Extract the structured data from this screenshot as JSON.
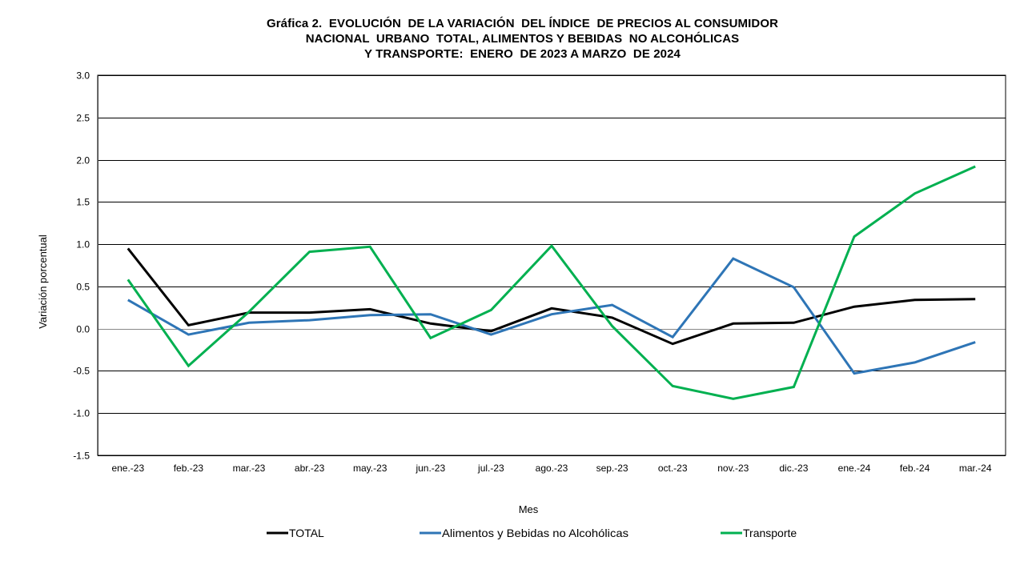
{
  "chart_data": {
    "type": "line",
    "title_lines": [
      "Gráfica 2.  EVOLUCIÓN  DE LA VARIACIÓN  DEL ÍNDICE  DE PRECIOS AL CONSUMIDOR",
      "NACIONAL  URBANO  TOTAL, ALIMENTOS Y BEBIDAS  NO ALCOHÓLICAS",
      "Y TRANSPORTE:  ENERO  DE 2023 A MARZO  DE 2024"
    ],
    "xlabel": "Mes",
    "ylabel": "Variación  porcentual",
    "ylim": [
      -1.5,
      3.0
    ],
    "yticks": [
      "3.0",
      "2.5",
      "2.0",
      "1.5",
      "1.0",
      "0.5",
      "0.0",
      "-0.5",
      "-1.0",
      "-1.5"
    ],
    "ytick_values": [
      3.0,
      2.5,
      2.0,
      1.5,
      1.0,
      0.5,
      0.0,
      -0.5,
      -1.0,
      -1.5
    ],
    "grid": true,
    "legend_position": "bottom",
    "categories": [
      "ene.-23",
      "feb.-23",
      "mar.-23",
      "abr.-23",
      "may.-23",
      "jun.-23",
      "jul.-23",
      "ago.-23",
      "sep.-23",
      "oct.-23",
      "nov.-23",
      "dic.-23",
      "ene.-24",
      "feb.-24",
      "mar.-24"
    ],
    "series": [
      {
        "name": "TOTAL",
        "color": "#000000",
        "values": [
          0.95,
          0.04,
          0.19,
          0.19,
          0.23,
          0.06,
          -0.03,
          0.24,
          0.13,
          -0.18,
          0.06,
          0.07,
          0.26,
          0.34,
          0.35
        ]
      },
      {
        "name": "Alimentos y Bebidas no Alcohólicas",
        "color": "#2E75B6",
        "values": [
          0.34,
          -0.07,
          0.07,
          0.1,
          0.16,
          0.17,
          -0.07,
          0.17,
          0.28,
          -0.1,
          0.83,
          0.49,
          -0.53,
          -0.4,
          -0.16
        ]
      },
      {
        "name": "Transporte",
        "color": "#00B050",
        "values": [
          0.58,
          -0.44,
          0.2,
          0.91,
          0.97,
          -0.11,
          0.22,
          0.98,
          0.03,
          -0.68,
          -0.83,
          -0.69,
          1.09,
          1.6,
          1.92
        ]
      }
    ]
  }
}
